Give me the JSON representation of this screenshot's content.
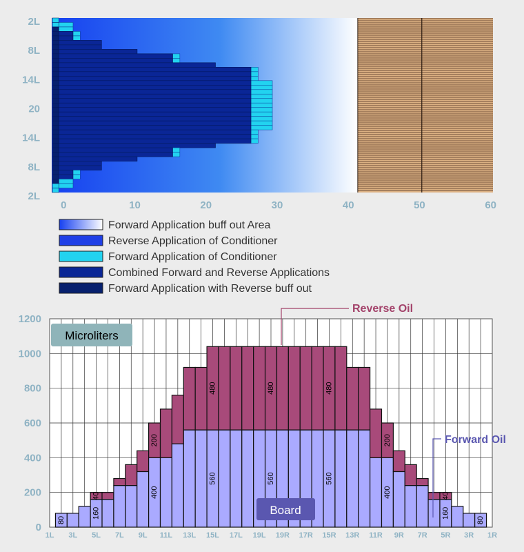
{
  "colors": {
    "background": "#ececec",
    "tick_text": "#8fb3c4",
    "grid": "#333333",
    "cond_forward": "#22d3f0",
    "cond_reverse": "#1f3fe6",
    "combined": "#0a2696",
    "forward_reverse_buff": "#07206e",
    "buff_area_start": "#1640f0",
    "buff_area_end": "#ffffff",
    "wood_light": "#dcb183",
    "wood_dark": "#4d3020",
    "forward_oil": "#aaaaff",
    "reverse_oil": "#a84a7a",
    "reverse_oil_text": "#a3426a",
    "forward_oil_text": "#5a57b0",
    "microliters_box": "#8fb4b9",
    "board_box": "#5a57b0"
  },
  "chart_data": [
    {
      "type": "heatmap",
      "title": "",
      "y_tick_labels": [
        "2L",
        "8L",
        "14L",
        "20",
        "14L",
        "8L",
        "2L"
      ],
      "x_ticks": [
        0,
        10,
        20,
        30,
        40,
        50,
        60
      ],
      "xlim": [
        -1,
        61
      ],
      "rows": 39,
      "forward_conditioner_extent_by_row": [
        0,
        2,
        2,
        3,
        3,
        6,
        6,
        11,
        17,
        17,
        22,
        28,
        28,
        28,
        30,
        30,
        30,
        30,
        30,
        30,
        30,
        30,
        30,
        30,
        30,
        28,
        28,
        28,
        22,
        17,
        17,
        11,
        6,
        6,
        3,
        3,
        2,
        2,
        0
      ],
      "reverse_conditioner_extent_by_row": [
        0,
        0,
        0,
        2,
        2,
        6,
        6,
        11,
        16,
        16,
        22,
        27,
        27,
        27,
        27,
        27,
        27,
        27,
        27,
        27,
        27,
        27,
        27,
        27,
        27,
        27,
        27,
        27,
        22,
        16,
        16,
        11,
        6,
        6,
        2,
        2,
        0,
        0,
        0
      ],
      "buff_out_area_x": [
        0,
        42
      ],
      "wood_board_x": [
        42,
        61
      ],
      "wood_board_divider_x": 51,
      "legend": [
        {
          "label": "Forward Application buff out Area",
          "key": "buff_area"
        },
        {
          "label": "Reverse Application of Conditioner",
          "key": "cond_reverse"
        },
        {
          "label": "Forward Application of Conditioner",
          "key": "cond_forward"
        },
        {
          "label": "Combined Forward and Reverse Applications",
          "key": "combined"
        },
        {
          "label": "Forward Application with Reverse buff out",
          "key": "forward_reverse_buff"
        }
      ]
    },
    {
      "type": "bar",
      "stacked": true,
      "title": "",
      "ylabel": "",
      "ylim": [
        0,
        1200
      ],
      "y_ticks": [
        0,
        200,
        400,
        600,
        800,
        1000,
        1200
      ],
      "categories": [
        "1L",
        "2L",
        "3L",
        "4L",
        "5L",
        "6L",
        "7L",
        "8L",
        "9L",
        "10L",
        "11L",
        "12L",
        "13L",
        "14L",
        "15L",
        "16L",
        "17L",
        "18L",
        "19L",
        "20",
        "19R",
        "18R",
        "17R",
        "16R",
        "15R",
        "14R",
        "13R",
        "12R",
        "11R",
        "10R",
        "9R",
        "8R",
        "7R",
        "6R",
        "5R",
        "4R",
        "3R",
        "2R",
        "1R"
      ],
      "x_tick_labels": [
        "1L",
        "3L",
        "5L",
        "7L",
        "9L",
        "11L",
        "13L",
        "15L",
        "17L",
        "19L",
        "19R",
        "17R",
        "15R",
        "13R",
        "11R",
        "9R",
        "7R",
        "5R",
        "3R",
        "1R"
      ],
      "series": [
        {
          "name": "Forward Oil",
          "values": [
            0,
            80,
            80,
            120,
            160,
            160,
            240,
            240,
            320,
            400,
            400,
            480,
            560,
            560,
            560,
            560,
            560,
            560,
            560,
            560,
            560,
            560,
            560,
            560,
            560,
            560,
            560,
            560,
            400,
            400,
            320,
            240,
            240,
            160,
            160,
            120,
            80,
            80,
            0
          ]
        },
        {
          "name": "Reverse Oil",
          "values": [
            0,
            0,
            0,
            0,
            40,
            40,
            40,
            120,
            120,
            200,
            280,
            280,
            360,
            360,
            480,
            480,
            480,
            480,
            480,
            480,
            480,
            480,
            480,
            480,
            480,
            480,
            360,
            360,
            280,
            200,
            120,
            120,
            40,
            40,
            40,
            0,
            0,
            0,
            0
          ]
        }
      ],
      "bar_labels": [
        {
          "i": 1,
          "text": "80"
        },
        {
          "i": 4,
          "text": "40"
        },
        {
          "i": 4,
          "text": "160"
        },
        {
          "i": 9,
          "text": "200"
        },
        {
          "i": 9,
          "text": "400"
        },
        {
          "i": 14,
          "text": "480"
        },
        {
          "i": 14,
          "text": "560"
        },
        {
          "i": 19,
          "text": "480"
        },
        {
          "i": 19,
          "text": "560"
        },
        {
          "i": 24,
          "text": "480"
        },
        {
          "i": 24,
          "text": "560"
        },
        {
          "i": 29,
          "text": "200"
        },
        {
          "i": 29,
          "text": "400"
        },
        {
          "i": 34,
          "text": "40"
        },
        {
          "i": 34,
          "text": "160"
        },
        {
          "i": 37,
          "text": "80"
        }
      ],
      "annotations": {
        "reverse_oil": "Reverse Oil",
        "forward_oil": "Forward Oil",
        "unit_box": "Microliters",
        "board_box": "Board"
      }
    }
  ]
}
